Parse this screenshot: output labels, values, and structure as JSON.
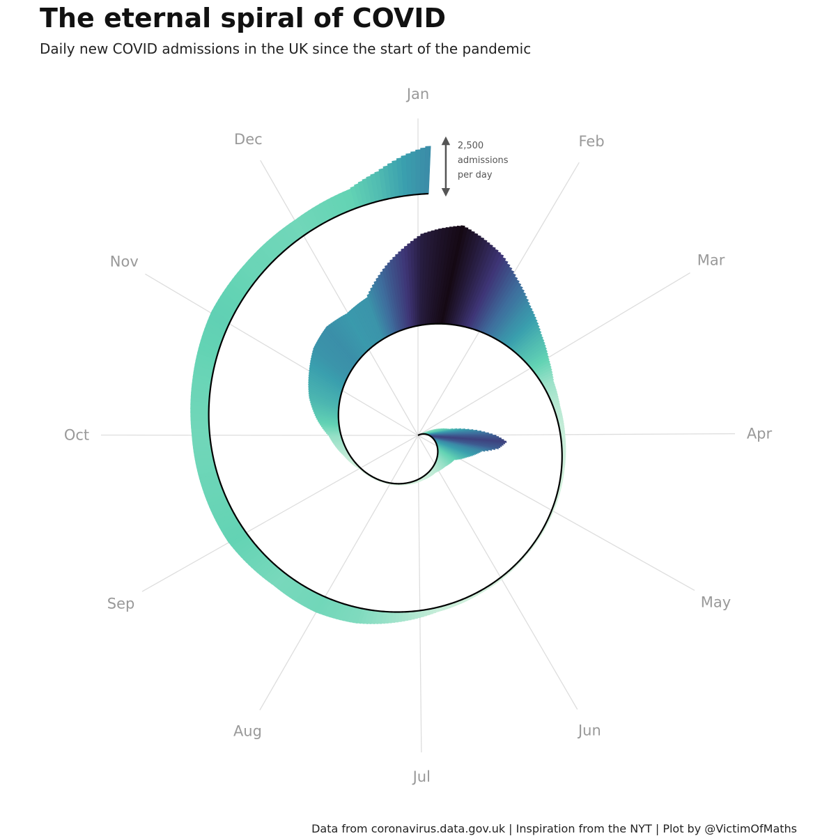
{
  "title": "The eternal spiral of COVID",
  "subtitle": "Daily new COVID admissions in the UK since the start of the pandemic",
  "caption": "Data from coronavirus.data.gov.uk | Inspiration from the NYT | Plot by @VictimOfMaths",
  "scale_annotation": {
    "lines": [
      "2,500",
      "admissions",
      "per day"
    ],
    "value": 2500
  },
  "colors": {
    "palette": [
      "#e3f4e3",
      "#63d3b4",
      "#3a9fae",
      "#3e6e9d",
      "#3e3576",
      "#150914"
    ],
    "spiral_line": "#000000",
    "month_label": "#999999",
    "grid": "#dddddd",
    "arrow": "#555555"
  },
  "chart_data": {
    "type": "area",
    "coordinate_system": "spiral",
    "title": "The eternal spiral of COVID",
    "subtitle": "Daily new COVID admissions in the UK since the start of the pandemic",
    "months": [
      "Jan",
      "Feb",
      "Mar",
      "Apr",
      "May",
      "Jun",
      "Jul",
      "Aug",
      "Sep",
      "Oct",
      "Nov",
      "Dec"
    ],
    "series": [
      {
        "points": [
          [
            "2020-03-20",
            1100
          ],
          [
            "2020-03-28",
            2400
          ],
          [
            "2020-04-01",
            3000
          ],
          [
            "2020-04-05",
            3400
          ],
          [
            "2020-04-10",
            3000
          ],
          [
            "2020-04-15",
            2200
          ],
          [
            "2020-04-25",
            1500
          ],
          [
            "2020-05-05",
            900
          ],
          [
            "2020-05-20",
            550
          ],
          [
            "2020-06-05",
            280
          ],
          [
            "2020-06-25",
            140
          ],
          [
            "2020-07-15",
            80
          ],
          [
            "2020-08-10",
            55
          ],
          [
            "2020-08-31",
            70
          ],
          [
            "2020-09-15",
            250
          ],
          [
            "2020-09-30",
            550
          ],
          [
            "2020-10-10",
            1000
          ],
          [
            "2020-10-20",
            1400
          ],
          [
            "2020-10-31",
            1700
          ],
          [
            "2020-11-10",
            2000
          ],
          [
            "2020-11-20",
            2100
          ],
          [
            "2020-11-30",
            1900
          ],
          [
            "2020-12-10",
            2000
          ],
          [
            "2020-12-20",
            3000
          ],
          [
            "2021-01-01",
            4100
          ],
          [
            "2021-01-06",
            4300
          ],
          [
            "2021-01-12",
            4500
          ],
          [
            "2021-01-18",
            4100
          ],
          [
            "2021-01-25",
            3600
          ],
          [
            "2021-02-01",
            2900
          ],
          [
            "2021-02-10",
            2100
          ],
          [
            "2021-02-20",
            1400
          ],
          [
            "2021-03-01",
            900
          ],
          [
            "2021-03-10",
            500
          ],
          [
            "2021-03-20",
            300
          ],
          [
            "2021-04-01",
            200
          ],
          [
            "2021-04-15",
            130
          ],
          [
            "2021-05-01",
            90
          ],
          [
            "2021-05-20",
            70
          ],
          [
            "2021-06-10",
            110
          ],
          [
            "2021-06-25",
            200
          ],
          [
            "2021-07-10",
            500
          ],
          [
            "2021-07-20",
            700
          ],
          [
            "2021-08-01",
            800
          ],
          [
            "2021-08-15",
            750
          ],
          [
            "2021-09-01",
            900
          ],
          [
            "2021-09-15",
            850
          ],
          [
            "2021-10-01",
            800
          ],
          [
            "2021-10-15",
            850
          ],
          [
            "2021-11-01",
            950
          ],
          [
            "2021-11-15",
            850
          ],
          [
            "2021-12-01",
            800
          ],
          [
            "2021-12-15",
            900
          ],
          [
            "2021-12-22",
            1300
          ],
          [
            "2021-12-28",
            1800
          ],
          [
            "2022-01-03",
            2200
          ]
        ]
      }
    ]
  }
}
